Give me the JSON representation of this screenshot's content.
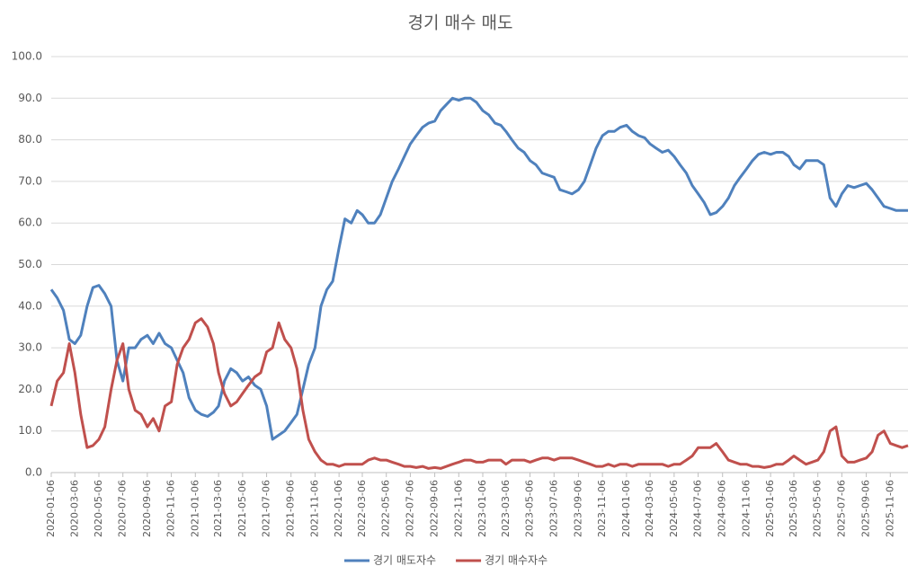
{
  "chart_data": {
    "type": "line",
    "title": "경기 매수 매도",
    "x": [
      "2020-01-06",
      "2020-01-21",
      "2020-02-06",
      "2020-02-21",
      "2020-03-06",
      "2020-03-21",
      "2020-04-06",
      "2020-04-21",
      "2020-05-06",
      "2020-05-21",
      "2020-06-06",
      "2020-06-21",
      "2020-07-06",
      "2020-07-21",
      "2020-08-06",
      "2020-08-21",
      "2020-09-06",
      "2020-09-21",
      "2020-10-06",
      "2020-10-21",
      "2020-11-06",
      "2020-11-21",
      "2020-12-06",
      "2020-12-21",
      "2021-01-06",
      "2021-01-21",
      "2021-02-06",
      "2021-02-21",
      "2021-03-06",
      "2021-03-21",
      "2021-04-06",
      "2021-04-21",
      "2021-05-06",
      "2021-05-21",
      "2021-06-06",
      "2021-06-21",
      "2021-07-06",
      "2021-07-21",
      "2021-08-06",
      "2021-08-21",
      "2021-09-06",
      "2021-09-21",
      "2021-10-06",
      "2021-10-21",
      "2021-11-06",
      "2021-11-21",
      "2021-12-06",
      "2021-12-21",
      "2022-01-06",
      "2022-01-21",
      "2022-02-06",
      "2022-02-21",
      "2022-03-06",
      "2022-03-21",
      "2022-04-06",
      "2022-04-21",
      "2022-05-06",
      "2022-05-21",
      "2022-06-06",
      "2022-06-21",
      "2022-07-06",
      "2022-07-21",
      "2022-08-06",
      "2022-08-21",
      "2022-09-06",
      "2022-09-21",
      "2022-10-06",
      "2022-10-21",
      "2022-11-06",
      "2022-11-21",
      "2022-12-06",
      "2022-12-21",
      "2023-01-06",
      "2023-01-21",
      "2023-02-06",
      "2023-02-21",
      "2023-03-06",
      "2023-03-21",
      "2023-04-06",
      "2023-04-21",
      "2023-05-06",
      "2023-05-21",
      "2023-06-06",
      "2023-06-21",
      "2023-07-06",
      "2023-07-21",
      "2023-08-06",
      "2023-08-21",
      "2023-09-06",
      "2023-09-21",
      "2023-10-06",
      "2023-10-21",
      "2023-11-06",
      "2023-11-21",
      "2023-12-06",
      "2023-12-21",
      "2024-01-06",
      "2024-01-21",
      "2024-02-06",
      "2024-02-21",
      "2024-03-06",
      "2024-03-21",
      "2024-04-06",
      "2024-04-21",
      "2024-05-06",
      "2024-05-21",
      "2024-06-06",
      "2024-06-21",
      "2024-07-06",
      "2024-07-21",
      "2024-08-06",
      "2024-08-21",
      "2024-09-06",
      "2024-09-21",
      "2024-10-06",
      "2024-10-21",
      "2024-11-06",
      "2024-11-21",
      "2024-12-06",
      "2024-12-21",
      "2025-01-06",
      "2025-01-21",
      "2025-02-06",
      "2025-02-21",
      "2025-03-06",
      "2025-03-21",
      "2025-04-06",
      "2025-04-21",
      "2025-05-06",
      "2025-05-21",
      "2025-06-06",
      "2025-06-21",
      "2025-07-06",
      "2025-07-21",
      "2025-08-06",
      "2025-08-21",
      "2025-09-06",
      "2025-09-21",
      "2025-10-06",
      "2025-10-21",
      "2025-11-06",
      "2025-11-21",
      "2025-12-06",
      "2025-12-21"
    ],
    "series": [
      {
        "name": "경기 매도자수",
        "color": "#4f81bd",
        "values": [
          44,
          42,
          39,
          32,
          31,
          33,
          40,
          44.5,
          45,
          43,
          40,
          27,
          22,
          30,
          30,
          32,
          33,
          31,
          33.5,
          31,
          30,
          27,
          24,
          18,
          15,
          14,
          13.5,
          14.5,
          16,
          22,
          25,
          24,
          22,
          23,
          21,
          20,
          16,
          8,
          9,
          10,
          12,
          14,
          20,
          26,
          30,
          40,
          44,
          46,
          54,
          61,
          60,
          63,
          62,
          60,
          60,
          62,
          66,
          70,
          73,
          76,
          79,
          81,
          83,
          84,
          84.5,
          87,
          88.5,
          90,
          89.5,
          90,
          90,
          89,
          87,
          86,
          84,
          83.5,
          82,
          80,
          78,
          77,
          75,
          74,
          72,
          71.5,
          71,
          68,
          67.5,
          67,
          68,
          70,
          74,
          78,
          81,
          82,
          82,
          83,
          83.5,
          82,
          81,
          80.5,
          79,
          78,
          77,
          77.5,
          76,
          74,
          72,
          69,
          67,
          65,
          62,
          62.5,
          64,
          66,
          69,
          71,
          73,
          75,
          76.5,
          77,
          76.5,
          77,
          77,
          76,
          74,
          73,
          75,
          75,
          75,
          74,
          66,
          64,
          67,
          69,
          68.5,
          69,
          69.5,
          68,
          66,
          64,
          63.5,
          63,
          63,
          63
        ]
      },
      {
        "name": "경기 매수자수",
        "color": "#c0504d",
        "values": [
          16,
          22,
          24,
          31,
          24,
          14,
          6,
          6.5,
          8,
          11,
          20,
          27,
          31,
          20,
          15,
          14,
          11,
          13,
          10,
          16,
          17,
          26,
          30,
          32,
          36,
          37,
          35,
          31,
          24,
          19,
          16,
          17,
          19,
          21,
          23,
          24,
          29,
          30,
          36,
          32,
          30,
          25,
          15,
          8,
          5,
          3,
          2,
          2,
          1.5,
          2,
          2,
          2,
          2,
          3,
          3.5,
          3,
          3,
          2.5,
          2,
          1.5,
          1.5,
          1.2,
          1.5,
          1,
          1.2,
          1,
          1.5,
          2,
          2.5,
          3,
          3,
          2.5,
          2.5,
          3,
          3,
          3,
          2,
          3,
          3,
          3,
          2.5,
          3,
          3.5,
          3.5,
          3,
          3.5,
          3.5,
          3.5,
          3,
          2.5,
          2,
          1.5,
          1.5,
          2,
          1.5,
          2,
          2,
          1.5,
          2,
          2,
          2,
          2,
          2,
          1.5,
          2,
          2,
          3,
          4,
          6,
          6,
          6,
          7,
          5,
          3,
          2.5,
          2,
          2,
          1.5,
          1.5,
          1.2,
          1.5,
          2,
          2,
          3,
          4,
          3,
          2,
          2.5,
          3,
          5,
          10,
          11,
          4,
          2.5,
          2.5,
          3,
          3.5,
          5,
          9,
          10,
          7,
          6.5,
          6,
          6.5
        ]
      }
    ],
    "xlim": [
      "2020-01-06",
      "2025-12-21"
    ],
    "xticks": [
      "2020-01-06",
      "2020-03-06",
      "2020-05-06",
      "2020-07-06",
      "2020-09-06",
      "2020-11-06",
      "2021-01-06",
      "2021-03-06",
      "2021-05-06",
      "2021-07-06",
      "2021-09-06",
      "2021-11-06",
      "2022-01-06",
      "2022-03-06",
      "2022-05-06",
      "2022-07-06",
      "2022-09-06",
      "2022-11-06",
      "2023-01-06",
      "2023-03-06",
      "2023-05-06",
      "2023-07-06",
      "2023-09-06",
      "2023-11-06",
      "2024-01-06",
      "2024-03-06",
      "2024-05-06",
      "2024-07-06",
      "2024-09-06",
      "2024-11-06",
      "2025-01-06",
      "2025-03-06",
      "2025-05-06",
      "2025-07-06",
      "2025-09-06",
      "2025-11-06"
    ],
    "ylim": [
      0,
      100
    ],
    "yticks": [
      {
        "value": 0,
        "label": "0.0"
      },
      {
        "value": 10,
        "label": "10.0"
      },
      {
        "value": 20,
        "label": "20.0"
      },
      {
        "value": 30,
        "label": "30.0"
      },
      {
        "value": 40,
        "label": "40.0"
      },
      {
        "value": 50,
        "label": "50.0"
      },
      {
        "value": 60,
        "label": "60.0"
      },
      {
        "value": 70,
        "label": "70.0"
      },
      {
        "value": 80,
        "label": "80.0"
      },
      {
        "value": 90,
        "label": "90.0"
      },
      {
        "value": 100,
        "label": "100.0"
      }
    ],
    "grid": true,
    "legend": "bottom"
  }
}
